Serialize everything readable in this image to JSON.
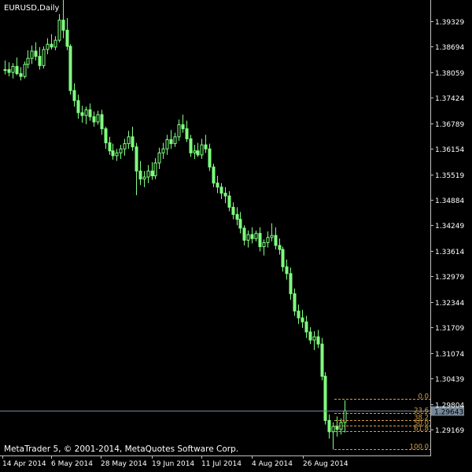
{
  "window": {
    "symbol_label": "EURUSD,Daily",
    "copyright": "MetaTrader 5, © 2001-2014, MetaQuotes Software Corp."
  },
  "colors": {
    "background": "#000000",
    "axis": "#c0c0c0",
    "text": "#ffffff",
    "candle": "#7fff7f",
    "fib": "#d4a04a",
    "price_line": "#778899",
    "price_tag_bg": "#778899"
  },
  "chart_data": {
    "type": "candlestick",
    "title": "EURUSD,Daily",
    "ylim": [
      1.2853,
      1.3985
    ],
    "y_ticks": [
      1.39329,
      1.38694,
      1.38059,
      1.37424,
      1.36789,
      1.36154,
      1.35519,
      1.34884,
      1.34249,
      1.33614,
      1.32979,
      1.32344,
      1.31709,
      1.31074,
      1.30439,
      1.29804,
      1.29169
    ],
    "y_tick_labels": [
      "1.39329",
      "1.38694",
      "1.38059",
      "1.37424",
      "1.36789",
      "1.36154",
      "1.35519",
      "1.34884",
      "1.34249",
      "1.33614",
      "1.32979",
      "1.32344",
      "1.31709",
      "1.31074",
      "1.30439",
      "1.29804",
      "1.29169"
    ],
    "x_labels": [
      "14 Apr 2014",
      "6 May 2014",
      "28 May 2014",
      "19 Jun 2014",
      "11 Jul 2014",
      "4 Aug 2014",
      "26 Aug 2014"
    ],
    "current_price": 1.29643,
    "current_price_label": "1.29643",
    "fibonacci": {
      "levels": [
        {
          "label": "0.0",
          "value": 1.2993
        },
        {
          "label": "23.6",
          "value": 1.2958
        },
        {
          "label": "38.2",
          "value": 1.2941
        },
        {
          "label": "50.0",
          "value": 1.2927
        },
        {
          "label": "61.8",
          "value": 1.2913
        },
        {
          "label": "100.0",
          "value": 1.2869
        }
      ]
    },
    "candles": [
      [
        1.381,
        1.3835,
        1.38,
        1.3812
      ],
      [
        1.3812,
        1.383,
        1.3795,
        1.3805
      ],
      [
        1.3805,
        1.3828,
        1.379,
        1.382
      ],
      [
        1.382,
        1.3842,
        1.3798,
        1.3802
      ],
      [
        1.3802,
        1.3818,
        1.3785,
        1.3795
      ],
      [
        1.3795,
        1.3832,
        1.379,
        1.3825
      ],
      [
        1.3825,
        1.386,
        1.3815,
        1.384
      ],
      [
        1.384,
        1.3872,
        1.3826,
        1.3858
      ],
      [
        1.3858,
        1.388,
        1.3835,
        1.3845
      ],
      [
        1.3845,
        1.3868,
        1.3812,
        1.3822
      ],
      [
        1.3822,
        1.387,
        1.3815,
        1.3862
      ],
      [
        1.3862,
        1.389,
        1.385,
        1.3875
      ],
      [
        1.3875,
        1.39,
        1.3862,
        1.3868
      ],
      [
        1.3868,
        1.3895,
        1.386,
        1.3885
      ],
      [
        1.3885,
        1.395,
        1.388,
        1.3935
      ],
      [
        1.3935,
        1.399,
        1.389,
        1.391
      ],
      [
        1.391,
        1.394,
        1.386,
        1.387
      ],
      [
        1.387,
        1.3875,
        1.375,
        1.376
      ],
      [
        1.376,
        1.3778,
        1.372,
        1.3735
      ],
      [
        1.3735,
        1.375,
        1.369,
        1.3705
      ],
      [
        1.3705,
        1.3722,
        1.368,
        1.3698
      ],
      [
        1.3698,
        1.372,
        1.3676,
        1.3712
      ],
      [
        1.3712,
        1.3728,
        1.3685,
        1.3695
      ],
      [
        1.3695,
        1.3708,
        1.367,
        1.3682
      ],
      [
        1.3682,
        1.371,
        1.3675,
        1.37
      ],
      [
        1.37,
        1.3712,
        1.365,
        1.3665
      ],
      [
        1.3665,
        1.367,
        1.3615,
        1.363
      ],
      [
        1.363,
        1.3645,
        1.36,
        1.361
      ],
      [
        1.361,
        1.3628,
        1.3588,
        1.3598
      ],
      [
        1.3598,
        1.3615,
        1.3585,
        1.3605
      ],
      [
        1.3605,
        1.3625,
        1.359,
        1.3615
      ],
      [
        1.3615,
        1.364,
        1.3598,
        1.3628
      ],
      [
        1.3628,
        1.366,
        1.3615,
        1.3645
      ],
      [
        1.3645,
        1.367,
        1.361,
        1.362
      ],
      [
        1.362,
        1.363,
        1.35,
        1.356
      ],
      [
        1.356,
        1.3585,
        1.3525,
        1.354
      ],
      [
        1.354,
        1.356,
        1.352,
        1.3545
      ],
      [
        1.3545,
        1.3575,
        1.353,
        1.356
      ],
      [
        1.356,
        1.3582,
        1.3538,
        1.3548
      ],
      [
        1.3548,
        1.3592,
        1.354,
        1.358
      ],
      [
        1.358,
        1.3618,
        1.3565,
        1.3605
      ],
      [
        1.3605,
        1.363,
        1.359,
        1.3615
      ],
      [
        1.3615,
        1.365,
        1.36,
        1.3638
      ],
      [
        1.3638,
        1.3662,
        1.3615,
        1.3628
      ],
      [
        1.3628,
        1.3655,
        1.362,
        1.3645
      ],
      [
        1.3645,
        1.3688,
        1.3635,
        1.3675
      ],
      [
        1.3675,
        1.37,
        1.3655,
        1.3665
      ],
      [
        1.3665,
        1.3685,
        1.3632,
        1.364
      ],
      [
        1.364,
        1.365,
        1.3595,
        1.3605
      ],
      [
        1.3605,
        1.3625,
        1.359,
        1.361
      ],
      [
        1.361,
        1.363,
        1.3595,
        1.36
      ],
      [
        1.36,
        1.364,
        1.359,
        1.3625
      ],
      [
        1.3625,
        1.365,
        1.3605,
        1.3615
      ],
      [
        1.3615,
        1.3628,
        1.356,
        1.357
      ],
      [
        1.357,
        1.3578,
        1.352,
        1.353
      ],
      [
        1.353,
        1.3548,
        1.3505,
        1.352
      ],
      [
        1.352,
        1.353,
        1.349,
        1.3505
      ],
      [
        1.3505,
        1.352,
        1.348,
        1.3498
      ],
      [
        1.3498,
        1.351,
        1.346,
        1.347
      ],
      [
        1.347,
        1.3482,
        1.344,
        1.3452
      ],
      [
        1.3452,
        1.347,
        1.3425,
        1.344
      ],
      [
        1.344,
        1.3458,
        1.3405,
        1.3418
      ],
      [
        1.3418,
        1.3425,
        1.3375,
        1.3388
      ],
      [
        1.3388,
        1.3412,
        1.337,
        1.3402
      ],
      [
        1.3402,
        1.342,
        1.338,
        1.3392
      ],
      [
        1.3392,
        1.3412,
        1.3385,
        1.3405
      ],
      [
        1.3405,
        1.342,
        1.336,
        1.3372
      ],
      [
        1.3372,
        1.339,
        1.335,
        1.3382
      ],
      [
        1.3382,
        1.341,
        1.337,
        1.3395
      ],
      [
        1.3395,
        1.343,
        1.3385,
        1.34
      ],
      [
        1.34,
        1.342,
        1.3365,
        1.3375
      ],
      [
        1.3375,
        1.3392,
        1.3352,
        1.3365
      ],
      [
        1.3365,
        1.3372,
        1.331,
        1.3322
      ],
      [
        1.3322,
        1.334,
        1.329,
        1.3305
      ],
      [
        1.3305,
        1.332,
        1.324,
        1.3255
      ],
      [
        1.3255,
        1.3268,
        1.32,
        1.3212
      ],
      [
        1.3212,
        1.3228,
        1.318,
        1.3195
      ],
      [
        1.3195,
        1.3215,
        1.317,
        1.3185
      ],
      [
        1.3185,
        1.32,
        1.3145,
        1.316
      ],
      [
        1.316,
        1.3172,
        1.313,
        1.314
      ],
      [
        1.314,
        1.3162,
        1.3115,
        1.3148
      ],
      [
        1.3148,
        1.3165,
        1.312,
        1.313
      ],
      [
        1.313,
        1.3145,
        1.304,
        1.305
      ],
      [
        1.305,
        1.306,
        1.293,
        1.294
      ],
      [
        1.294,
        1.2955,
        1.2895,
        1.2912
      ],
      [
        1.2912,
        1.2935,
        1.2868,
        1.2925
      ],
      [
        1.2925,
        1.295,
        1.29,
        1.2918
      ],
      [
        1.2918,
        1.2945,
        1.2905,
        1.2935
      ],
      [
        1.2935,
        1.299,
        1.291,
        1.2964
      ]
    ]
  }
}
